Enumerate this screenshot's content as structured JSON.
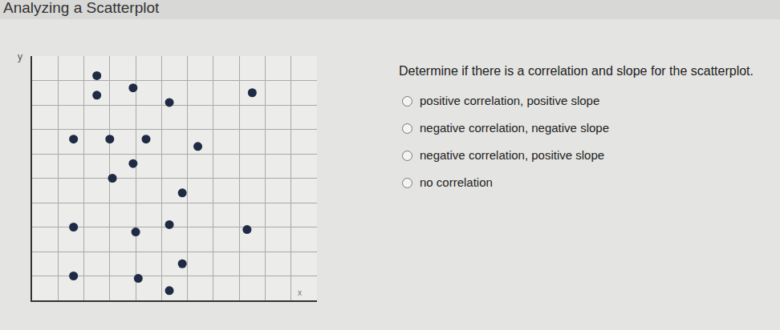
{
  "header": "Analyzing a Scatterplot",
  "question": {
    "text": "Determine if there is a correlation and slope for the scatterplot.",
    "options": [
      "positive correlation, positive slope",
      "negative correlation, negative slope",
      "negative correlation, positive slope",
      "no correlation"
    ]
  },
  "chart_data": {
    "type": "scatter",
    "x_label": "x",
    "y_label": "y",
    "color": "#1f2a44",
    "x": [
      2.5,
      3.9,
      8.5,
      2.5,
      5.3,
      1.6,
      3.0,
      4.4,
      6.4,
      3.9,
      3.1,
      5.8,
      1.6,
      4.0,
      5.3,
      8.3,
      5.8,
      1.6,
      4.1,
      5.3
    ],
    "values": [
      9.2,
      8.7,
      8.5,
      8.4,
      8.1,
      6.6,
      6.6,
      6.6,
      6.3,
      5.6,
      5.0,
      4.4,
      3.0,
      2.8,
      3.1,
      2.9,
      1.5,
      1.0,
      0.9,
      0.4
    ],
    "xlim": [
      0,
      11
    ],
    "ylim": [
      0,
      10
    ],
    "xticks": [
      0,
      1,
      2,
      3,
      4,
      5,
      6,
      7,
      8,
      9,
      10,
      11
    ],
    "yticks": [
      0,
      1,
      2,
      3,
      4,
      5,
      6,
      7,
      8,
      9,
      10
    ],
    "grid": true,
    "tick_labels": false,
    "marker": "circle"
  }
}
